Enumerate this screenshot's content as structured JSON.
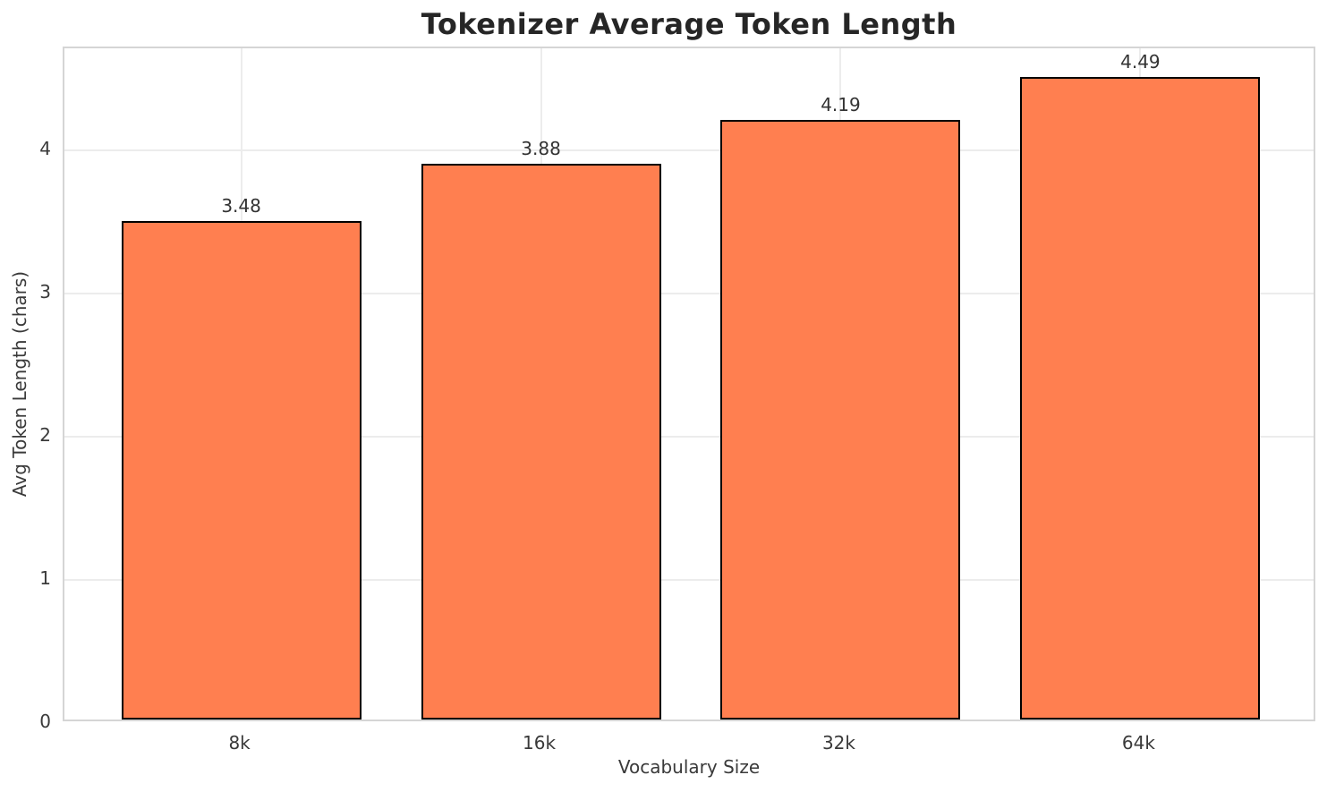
{
  "chart_data": {
    "type": "bar",
    "title": "Tokenizer Average Token Length",
    "xlabel": "Vocabulary Size",
    "ylabel": "Avg Token Length (chars)",
    "categories": [
      "8k",
      "16k",
      "32k",
      "64k"
    ],
    "values": [
      3.48,
      3.88,
      4.19,
      4.49
    ],
    "value_labels": [
      "3.48",
      "3.88",
      "4.19",
      "4.49"
    ],
    "yticks": [
      0,
      1,
      2,
      3,
      4
    ],
    "ytick_labels": [
      "0",
      "1",
      "2",
      "3",
      "4"
    ],
    "ylim": [
      0,
      4.7125
    ],
    "grid": true,
    "legend": null,
    "colors": {
      "bar_fill": "#FF7F50",
      "bar_edge": "#000000",
      "grid": "#ececec",
      "spine": "#d5d5d5",
      "title": "#262626",
      "text": "#3a3a3a",
      "value_label": "#333333",
      "background": "#ffffff"
    }
  }
}
